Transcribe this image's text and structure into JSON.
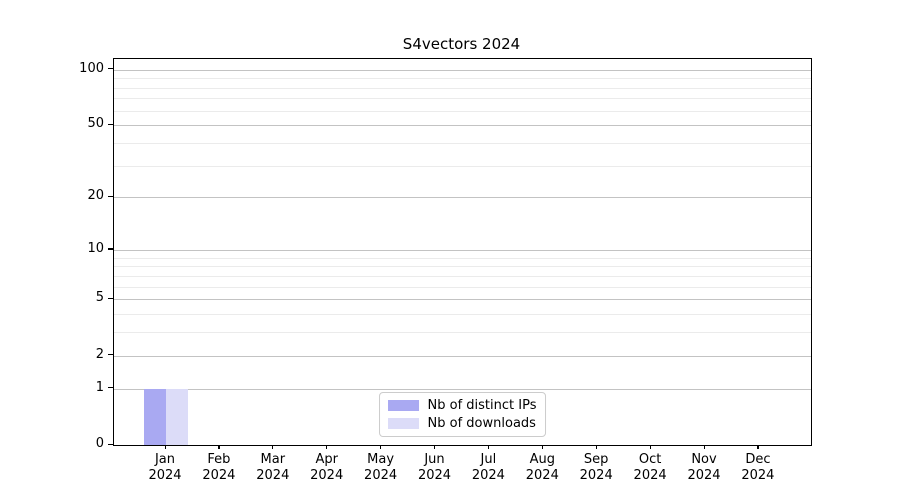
{
  "figure": {
    "title": "S4vectors 2024"
  },
  "chart_data": {
    "type": "bar",
    "title": "S4vectors 2024",
    "categories": [
      "Jan",
      "Feb",
      "Mar",
      "Apr",
      "May",
      "Jun",
      "Jul",
      "Aug",
      "Sep",
      "Oct",
      "Nov",
      "Dec"
    ],
    "x_year": "2024",
    "series": [
      {
        "name": "Nb of distinct IPs",
        "color": "#a9a9f2",
        "values": [
          1,
          0,
          0,
          0,
          0,
          0,
          0,
          0,
          0,
          0,
          0,
          0
        ]
      },
      {
        "name": "Nb of downloads",
        "color": "#dcdcf8",
        "values": [
          1,
          0,
          0,
          0,
          0,
          0,
          0,
          0,
          0,
          0,
          0,
          0
        ]
      }
    ],
    "y_scale": "log10(value+1)",
    "y_ticks": [
      0,
      1,
      2,
      5,
      10,
      20,
      50,
      100
    ],
    "y_minor_gridlines": [
      3,
      4,
      6,
      7,
      8,
      9,
      30,
      40,
      60,
      70,
      80,
      90
    ],
    "ylim": [
      0,
      114
    ],
    "xlabel": "",
    "ylabel": "",
    "grid": true,
    "legend_position": "lower center",
    "colors": {
      "axis": "#000000",
      "grid_major": "#c3c3c3",
      "grid_minor": "#ebebeb",
      "background": "#ffffff"
    }
  }
}
